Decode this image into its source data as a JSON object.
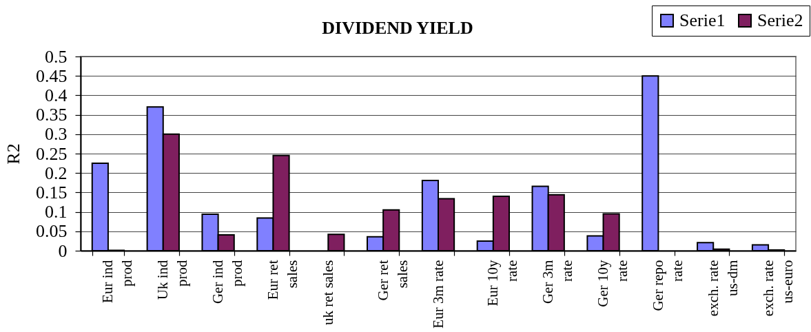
{
  "chart_data": {
    "type": "bar",
    "title": "DIVIDEND YIELD",
    "ylabel": "R2",
    "categories": [
      "Eur ind prod",
      "Uk ind prod",
      "Ger ind prod",
      "Eur ret sales",
      "uk ret sales",
      "Ger ret sales",
      "Eur 3m rate",
      "Eur 10y rate",
      "Ger 3m rate",
      "Ger 10y rate",
      "Ger repo rate",
      "exch. rate us-dm",
      "exch. rate us-euro"
    ],
    "series": [
      {
        "name": "Serie1",
        "color": "#8080ff",
        "values": [
          0.225,
          0.37,
          0.094,
          0.084,
          null,
          0.036,
          0.181,
          0.025,
          0.166,
          0.038,
          0.45,
          0.021,
          0.015
        ]
      },
      {
        "name": "Serie2",
        "color": "#7f1f5f",
        "values": [
          0.001,
          0.3,
          0.041,
          0.245,
          0.042,
          0.105,
          0.134,
          0.14,
          0.144,
          0.095,
          null,
          0.004,
          0.002
        ]
      }
    ],
    "ylim": [
      0,
      0.5
    ],
    "yticks": [
      0,
      0.05,
      0.1,
      0.15,
      0.2,
      0.25,
      0.3,
      0.35,
      0.4,
      0.45,
      0.5
    ],
    "grid": "y",
    "legend": "top right"
  }
}
